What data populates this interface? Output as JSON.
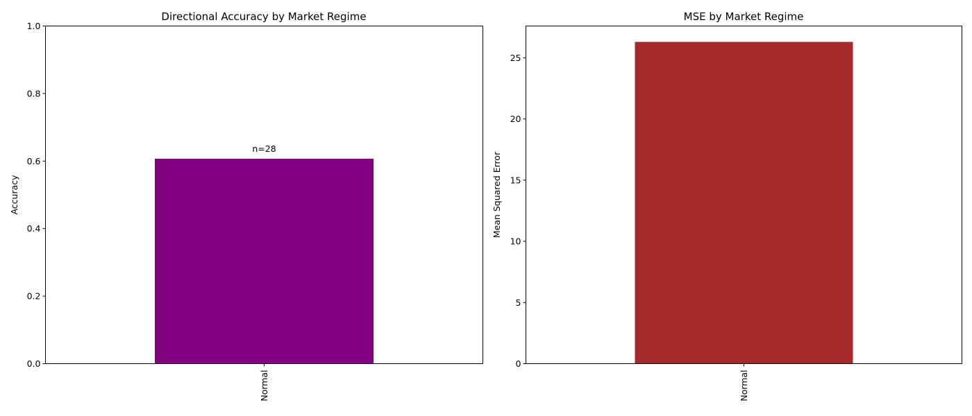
{
  "chart_data": [
    {
      "type": "bar",
      "title": "Directional Accuracy by Market Regime",
      "xlabel": "",
      "ylabel": "Accuracy",
      "categories": [
        "Normal"
      ],
      "values": [
        0.607
      ],
      "ylim": [
        0,
        1
      ],
      "yticks": [
        "0.0",
        "0.2",
        "0.4",
        "0.6",
        "0.8",
        "1.0"
      ],
      "ytick_values": [
        0,
        0.2,
        0.4,
        0.6,
        0.8,
        1.0
      ],
      "annotations": [
        "n=28"
      ],
      "color": "#800080",
      "grid": false,
      "legend": "none"
    },
    {
      "type": "bar",
      "title": "MSE by Market Regime",
      "xlabel": "",
      "ylabel": "Mean Squared Error",
      "categories": [
        "Normal"
      ],
      "values": [
        26.3
      ],
      "ylim": [
        0,
        27.6
      ],
      "yticks": [
        "0",
        "5",
        "10",
        "15",
        "20",
        "25"
      ],
      "ytick_values": [
        0,
        5,
        10,
        15,
        20,
        25
      ],
      "annotations": [],
      "color": "#A52A2A",
      "grid": false,
      "legend": "none"
    }
  ]
}
